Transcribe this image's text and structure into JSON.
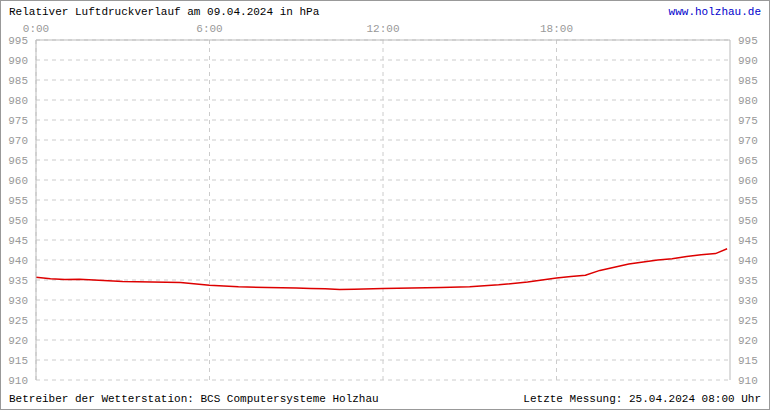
{
  "chart_data": {
    "type": "line",
    "title": "Relativer Luftdruckverlauf am 09.04.2024 in hPa",
    "source_url": "www.holzhau.de",
    "operator": "Betreiber der Wetterstation: BCS Computersysteme Holzhau",
    "last_measurement": "Letzte Messung: 25.04.2024 08:00 Uhr",
    "x": [
      0,
      0.5,
      1,
      1.5,
      2,
      2.5,
      3,
      4,
      5,
      6,
      7,
      8,
      9,
      9.5,
      10,
      10.5,
      11,
      12,
      13,
      14,
      15,
      16,
      17,
      17.5,
      18,
      18.5,
      19,
      19.5,
      20,
      20.5,
      21,
      21.5,
      22,
      22.5,
      23,
      23.5,
      23.9
    ],
    "values": [
      935.7,
      935.3,
      935.1,
      935.2,
      935,
      934.8,
      934.6,
      934.5,
      934.4,
      933.7,
      933.3,
      933.1,
      933,
      932.9,
      932.8,
      932.6,
      932.7,
      932.9,
      933,
      933.1,
      933.3,
      933.8,
      934.5,
      935,
      935.5,
      935.9,
      936.2,
      937.4,
      938.2,
      939,
      939.5,
      940,
      940.3,
      940.9,
      941.3,
      941.6,
      942.8
    ],
    "color": "#dd0000",
    "xlim": [
      0,
      24
    ],
    "xticks": [
      {
        "value": 0,
        "label": "0:00"
      },
      {
        "value": 6,
        "label": "6:00"
      },
      {
        "value": 12,
        "label": "12:00"
      },
      {
        "value": 18,
        "label": "18:00"
      }
    ],
    "ylim": [
      910,
      995
    ],
    "yticks": [
      910,
      915,
      920,
      925,
      930,
      935,
      940,
      945,
      950,
      955,
      960,
      965,
      970,
      975,
      980,
      985,
      990,
      995
    ],
    "y2lim": [
      910,
      995
    ],
    "y2ticks": [
      910,
      915,
      920,
      925,
      930,
      935,
      940,
      945,
      950,
      955,
      960,
      965,
      970,
      975,
      980,
      985,
      990,
      995
    ],
    "grid": true
  }
}
